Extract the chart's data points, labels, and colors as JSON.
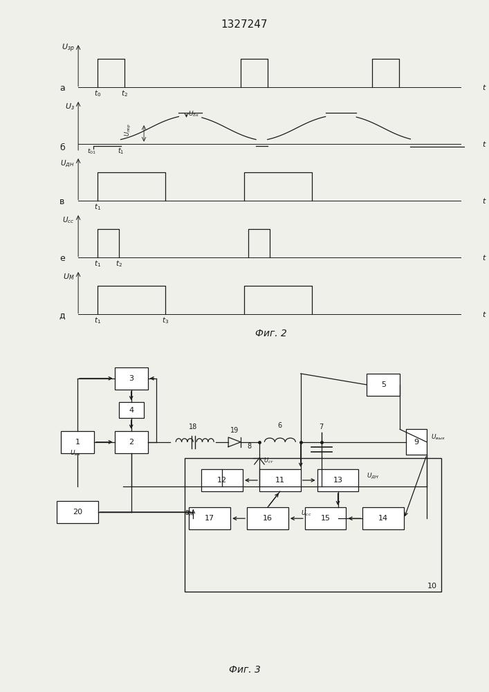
{
  "title": "1327247",
  "fig2_label": "Фиг. 2",
  "fig3_label": "Фиг. 3",
  "bg_color": "#f0f0eb",
  "line_color": "#1a1a1a"
}
